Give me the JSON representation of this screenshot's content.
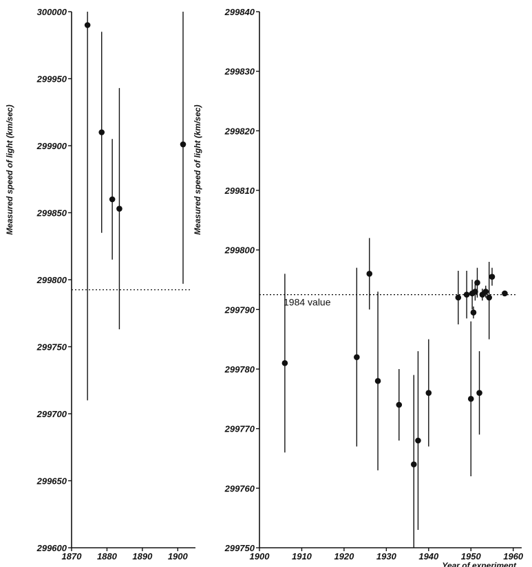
{
  "chart_data": [
    {
      "type": "scatter",
      "ylabel": "Measured speed of light (km/sec)",
      "xlabel": "",
      "xlim": [
        1870,
        1905
      ],
      "ylim": [
        299600,
        300000
      ],
      "xticks": [
        1870,
        1880,
        1890,
        1900
      ],
      "yticks": [
        299600,
        299650,
        299700,
        299750,
        299800,
        299850,
        299900,
        299950,
        300000
      ],
      "reference_line": {
        "value": 299792.5,
        "style": "dotted"
      },
      "points": [
        {
          "x": 1874.5,
          "y": 299990,
          "ylow": 299710,
          "yhigh": 300000
        },
        {
          "x": 1878.5,
          "y": 299910,
          "ylow": 299835,
          "yhigh": 299985
        },
        {
          "x": 1881.5,
          "y": 299860,
          "ylow": 299815,
          "yhigh": 299905
        },
        {
          "x": 1883.5,
          "y": 299853,
          "ylow": 299763,
          "yhigh": 299943
        },
        {
          "x": 1901.5,
          "y": 299901,
          "ylow": 299797,
          "yhigh": 300000
        }
      ]
    },
    {
      "type": "scatter",
      "ylabel": "Measured speed of light (km/sec)",
      "xlabel": "Year of experiment",
      "xlim": [
        1900,
        1962
      ],
      "ylim": [
        299750,
        299840
      ],
      "xticks": [
        1900,
        1910,
        1920,
        1930,
        1940,
        1950,
        1960
      ],
      "yticks": [
        299750,
        299760,
        299770,
        299780,
        299790,
        299800,
        299810,
        299820,
        299830,
        299840
      ],
      "reference_line": {
        "value": 299792.5,
        "style": "dotted",
        "label": "1984 value"
      },
      "points": [
        {
          "x": 1906,
          "y": 299781,
          "ylow": 299766,
          "yhigh": 299796
        },
        {
          "x": 1923,
          "y": 299782,
          "ylow": 299767,
          "yhigh": 299797
        },
        {
          "x": 1926,
          "y": 299796,
          "ylow": 299790,
          "yhigh": 299802
        },
        {
          "x": 1928,
          "y": 299778,
          "ylow": 299763,
          "yhigh": 299793
        },
        {
          "x": 1933,
          "y": 299774,
          "ylow": 299768,
          "yhigh": 299780
        },
        {
          "x": 1936.5,
          "y": 299764,
          "ylow": 299749,
          "yhigh": 299779
        },
        {
          "x": 1937.5,
          "y": 299768,
          "ylow": 299753,
          "yhigh": 299783
        },
        {
          "x": 1940,
          "y": 299776,
          "ylow": 299767,
          "yhigh": 299785
        },
        {
          "x": 1947,
          "y": 299792,
          "ylow": 299787.5,
          "yhigh": 299796.5
        },
        {
          "x": 1949,
          "y": 299792.5,
          "ylow": 299788.5,
          "yhigh": 299796.5
        },
        {
          "x": 1950,
          "y": 299775,
          "ylow": 299762,
          "yhigh": 299788
        },
        {
          "x": 1950.3,
          "y": 299792.7,
          "ylow": 299790,
          "yhigh": 299795
        },
        {
          "x": 1950.6,
          "y": 299789.5,
          "ylow": 299788.5,
          "yhigh": 299790.5
        },
        {
          "x": 1951,
          "y": 299793,
          "ylow": 299791.5,
          "yhigh": 299794.5
        },
        {
          "x": 1951.5,
          "y": 299794.5,
          "ylow": 299792,
          "yhigh": 299797
        },
        {
          "x": 1952,
          "y": 299776,
          "ylow": 299769,
          "yhigh": 299783
        },
        {
          "x": 1952.7,
          "y": 299792.5,
          "ylow": 299791.5,
          "yhigh": 299793.5
        },
        {
          "x": 1953.5,
          "y": 299793,
          "ylow": 299792,
          "yhigh": 299794
        },
        {
          "x": 1954.3,
          "y": 299792,
          "ylow": 299785,
          "yhigh": 299798
        },
        {
          "x": 1955,
          "y": 299795.5,
          "ylow": 299794,
          "yhigh": 299797
        },
        {
          "x": 1958,
          "y": 299792.7,
          "ylow": 299792.7,
          "yhigh": 299792.7
        }
      ]
    }
  ]
}
